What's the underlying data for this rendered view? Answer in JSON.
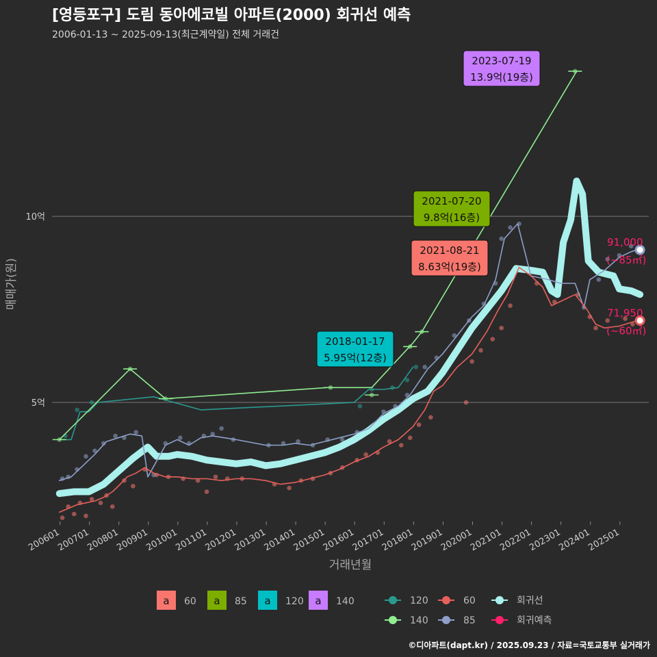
{
  "header": {
    "title": "[영등포구] 도림 동아에코빌 아파트(2000) 회귀선 예측",
    "subtitle": "2006-01-13 ~ 2025-09-13(최근계약일) 전체 거래건"
  },
  "footer": "©디아파트(dapt.kr) / 2025.09.23 / 자료=국토교통부 실거래가",
  "chart_data": {
    "type": "line",
    "xlabel": "거래년월",
    "ylabel": "매매가(원)",
    "x_ticks": [
      "200601",
      "200701",
      "200801",
      "200901",
      "201001",
      "201101",
      "201201",
      "201301",
      "201401",
      "201501",
      "201601",
      "201701",
      "201801",
      "201901",
      "202001",
      "202101",
      "202201",
      "202301",
      "202401",
      "202501"
    ],
    "y_ticks": [
      {
        "value": 5,
        "label": "5억"
      },
      {
        "value": 10,
        "label": "10억"
      }
    ],
    "xlim": [
      2005.75,
      2026.0
    ],
    "ylim": [
      1.8,
      14.6
    ],
    "grid": true,
    "colors": {
      "60": "#f8766d",
      "85": "#7cae00",
      "120": "#00bfc4",
      "140": "#c77cff",
      "line60": "#e8605a",
      "line85": "#8ea0c8",
      "line120": "#2a9a8f",
      "line140": "#90ee90",
      "regression": "#aaf0ec",
      "forecast": "#ff1f6a"
    },
    "series": [
      {
        "name": "60",
        "values": [
          [
            2006.0,
            2.05
          ],
          [
            2006.3,
            2.15
          ],
          [
            2006.6,
            2.25
          ],
          [
            2006.9,
            2.3
          ],
          [
            2007.2,
            2.35
          ],
          [
            2007.5,
            2.45
          ],
          [
            2007.8,
            2.6
          ],
          [
            2008.0,
            2.75
          ],
          [
            2008.3,
            3.0
          ],
          [
            2008.6,
            3.1
          ],
          [
            2008.9,
            3.25
          ],
          [
            2009.2,
            3.1
          ],
          [
            2009.6,
            3.0
          ],
          [
            2010.0,
            3.0
          ],
          [
            2010.5,
            2.95
          ],
          [
            2011.0,
            2.95
          ],
          [
            2011.5,
            2.9
          ],
          [
            2012.0,
            2.95
          ],
          [
            2012.5,
            2.95
          ],
          [
            2013.0,
            2.9
          ],
          [
            2013.5,
            2.8
          ],
          [
            2014.0,
            2.85
          ],
          [
            2014.5,
            2.95
          ],
          [
            2015.0,
            3.05
          ],
          [
            2015.5,
            3.2
          ],
          [
            2016.0,
            3.4
          ],
          [
            2016.5,
            3.55
          ],
          [
            2017.0,
            3.8
          ],
          [
            2017.5,
            4.0
          ],
          [
            2018.0,
            4.35
          ],
          [
            2018.4,
            4.8
          ],
          [
            2018.7,
            5.3
          ],
          [
            2019.0,
            5.45
          ],
          [
            2019.5,
            5.95
          ],
          [
            2020.0,
            6.3
          ],
          [
            2020.5,
            6.9
          ],
          [
            2020.9,
            7.5
          ],
          [
            2021.2,
            7.9
          ],
          [
            2021.6,
            8.63
          ],
          [
            2022.0,
            8.4
          ],
          [
            2022.4,
            8.1
          ],
          [
            2022.7,
            7.6
          ],
          [
            2023.5,
            7.9
          ],
          [
            2023.9,
            7.5
          ],
          [
            2024.2,
            7.1
          ],
          [
            2024.5,
            7.0
          ],
          [
            2025.0,
            7.05
          ],
          [
            2025.4,
            7.15
          ],
          [
            2025.6,
            7.2
          ]
        ]
      },
      {
        "name": "85",
        "values": [
          [
            2006.0,
            2.9
          ],
          [
            2006.4,
            3.0
          ],
          [
            2006.8,
            3.3
          ],
          [
            2007.2,
            3.6
          ],
          [
            2007.6,
            3.95
          ],
          [
            2008.0,
            4.05
          ],
          [
            2008.4,
            4.15
          ],
          [
            2008.8,
            4.1
          ],
          [
            2009.0,
            3.0
          ],
          [
            2009.6,
            3.85
          ],
          [
            2010.0,
            4.0
          ],
          [
            2010.4,
            3.85
          ],
          [
            2010.8,
            4.05
          ],
          [
            2011.2,
            4.1
          ],
          [
            2011.6,
            4.05
          ],
          [
            2012.0,
            4.0
          ],
          [
            2013.0,
            3.85
          ],
          [
            2013.6,
            3.85
          ],
          [
            2014.0,
            3.9
          ],
          [
            2014.5,
            3.85
          ],
          [
            2015.0,
            3.95
          ],
          [
            2015.5,
            4.05
          ],
          [
            2016.0,
            4.15
          ],
          [
            2016.5,
            4.3
          ],
          [
            2017.0,
            4.7
          ],
          [
            2017.5,
            4.9
          ],
          [
            2017.9,
            5.2
          ],
          [
            2018.5,
            5.9
          ],
          [
            2019.0,
            6.3
          ],
          [
            2019.5,
            6.8
          ],
          [
            2020.0,
            7.3
          ],
          [
            2020.4,
            7.6
          ],
          [
            2020.8,
            8.3
          ],
          [
            2021.1,
            9.4
          ],
          [
            2021.55,
            9.8
          ],
          [
            2022.0,
            8.4
          ],
          [
            2022.6,
            8.3
          ],
          [
            2023.0,
            8.2
          ],
          [
            2023.5,
            8.2
          ],
          [
            2023.8,
            7.55
          ],
          [
            2024.0,
            8.3
          ],
          [
            2024.5,
            8.55
          ],
          [
            2025.0,
            8.9
          ],
          [
            2025.4,
            9.05
          ],
          [
            2025.6,
            9.1
          ]
        ]
      },
      {
        "name": "120",
        "values": [
          [
            2006.0,
            4.0
          ],
          [
            2006.4,
            4.0
          ],
          [
            2006.7,
            4.75
          ],
          [
            2007.0,
            4.75
          ],
          [
            2007.3,
            5.0
          ],
          [
            2009.2,
            5.15
          ],
          [
            2010.8,
            4.8
          ],
          [
            2016.0,
            5.0
          ],
          [
            2016.5,
            5.35
          ],
          [
            2017.0,
            5.35
          ],
          [
            2017.5,
            5.4
          ],
          [
            2018.0,
            5.95
          ]
        ]
      },
      {
        "name": "140",
        "values": [
          [
            2006.0,
            4.0
          ],
          [
            2008.4,
            5.9
          ],
          [
            2009.6,
            5.1
          ],
          [
            2015.1,
            5.4
          ],
          [
            2016.6,
            5.4
          ],
          [
            2018.0,
            6.6
          ],
          [
            2018.3,
            6.9
          ],
          [
            2023.55,
            13.9
          ]
        ]
      },
      {
        "name": "회귀선",
        "values": [
          [
            2006.0,
            2.55
          ],
          [
            2006.5,
            2.6
          ],
          [
            2007.0,
            2.6
          ],
          [
            2007.5,
            2.8
          ],
          [
            2008.0,
            3.15
          ],
          [
            2008.5,
            3.5
          ],
          [
            2009.0,
            3.8
          ],
          [
            2009.3,
            3.55
          ],
          [
            2009.7,
            3.55
          ],
          [
            2010.0,
            3.6
          ],
          [
            2010.5,
            3.55
          ],
          [
            2011.0,
            3.45
          ],
          [
            2011.5,
            3.4
          ],
          [
            2012.0,
            3.35
          ],
          [
            2012.5,
            3.4
          ],
          [
            2013.0,
            3.3
          ],
          [
            2013.5,
            3.35
          ],
          [
            2014.0,
            3.45
          ],
          [
            2014.5,
            3.55
          ],
          [
            2015.0,
            3.65
          ],
          [
            2015.5,
            3.8
          ],
          [
            2016.0,
            4.0
          ],
          [
            2016.5,
            4.25
          ],
          [
            2017.0,
            4.55
          ],
          [
            2017.5,
            4.8
          ],
          [
            2018.0,
            5.1
          ],
          [
            2018.5,
            5.3
          ],
          [
            2019.0,
            5.8
          ],
          [
            2019.5,
            6.4
          ],
          [
            2020.0,
            7.0
          ],
          [
            2020.5,
            7.5
          ],
          [
            2021.0,
            8.0
          ],
          [
            2021.5,
            8.6
          ],
          [
            2022.0,
            8.55
          ],
          [
            2022.4,
            8.5
          ],
          [
            2022.7,
            8.0
          ],
          [
            2022.9,
            7.9
          ],
          [
            2023.1,
            9.3
          ],
          [
            2023.35,
            9.9
          ],
          [
            2023.55,
            10.95
          ],
          [
            2023.75,
            10.6
          ],
          [
            2023.95,
            8.8
          ],
          [
            2024.3,
            8.5
          ],
          [
            2024.8,
            8.4
          ],
          [
            2025.0,
            8.05
          ],
          [
            2025.4,
            8.0
          ],
          [
            2025.7,
            7.9
          ]
        ]
      }
    ],
    "points": {
      "60": [
        [
          2006.1,
          1.9
        ],
        [
          2006.3,
          2.2
        ],
        [
          2006.5,
          2.0
        ],
        [
          2006.7,
          2.3
        ],
        [
          2006.9,
          1.95
        ],
        [
          2007.1,
          2.4
        ],
        [
          2007.4,
          2.3
        ],
        [
          2007.6,
          2.5
        ],
        [
          2007.8,
          2.2
        ],
        [
          2008.2,
          2.9
        ],
        [
          2008.5,
          2.75
        ],
        [
          2008.9,
          3.2
        ],
        [
          2009.3,
          3.05
        ],
        [
          2009.7,
          3.0
        ],
        [
          2010.2,
          2.95
        ],
        [
          2010.7,
          2.9
        ],
        [
          2011.0,
          2.6
        ],
        [
          2011.3,
          3.0
        ],
        [
          2011.7,
          2.95
        ],
        [
          2012.2,
          2.95
        ],
        [
          2013.3,
          2.8
        ],
        [
          2013.8,
          2.7
        ],
        [
          2014.2,
          2.9
        ],
        [
          2014.6,
          2.95
        ],
        [
          2015.2,
          3.1
        ],
        [
          2015.6,
          3.25
        ],
        [
          2016.1,
          3.45
        ],
        [
          2016.4,
          3.6
        ],
        [
          2016.8,
          3.65
        ],
        [
          2017.2,
          3.95
        ],
        [
          2017.6,
          3.85
        ],
        [
          2017.9,
          4.05
        ],
        [
          2018.2,
          4.4
        ],
        [
          2018.6,
          4.6
        ],
        [
          2019.8,
          5.0
        ],
        [
          2020.0,
          6.1
        ],
        [
          2020.3,
          6.4
        ],
        [
          2020.7,
          6.7
        ],
        [
          2021.0,
          7.0
        ],
        [
          2021.3,
          7.6
        ],
        [
          2022.2,
          8.2
        ],
        [
          2022.5,
          8.35
        ],
        [
          2022.8,
          7.7
        ],
        [
          2023.6,
          7.9
        ],
        [
          2024.0,
          7.3
        ],
        [
          2024.2,
          7.0
        ],
        [
          2024.6,
          7.2
        ],
        [
          2025.2,
          7.25
        ],
        [
          2025.45,
          7.1
        ]
      ],
      "85": [
        [
          2006.1,
          2.95
        ],
        [
          2006.3,
          3.0
        ],
        [
          2006.6,
          3.2
        ],
        [
          2006.9,
          3.55
        ],
        [
          2007.2,
          3.7
        ],
        [
          2007.5,
          3.9
        ],
        [
          2007.9,
          4.1
        ],
        [
          2008.2,
          4.05
        ],
        [
          2008.6,
          4.2
        ],
        [
          2009.2,
          3.05
        ],
        [
          2009.6,
          3.9
        ],
        [
          2010.1,
          4.05
        ],
        [
          2010.4,
          3.9
        ],
        [
          2010.9,
          4.1
        ],
        [
          2011.2,
          4.15
        ],
        [
          2011.5,
          4.3
        ],
        [
          2011.9,
          4.0
        ],
        [
          2013.1,
          3.85
        ],
        [
          2013.6,
          3.9
        ],
        [
          2014.1,
          3.95
        ],
        [
          2014.6,
          3.85
        ],
        [
          2015.1,
          4.0
        ],
        [
          2015.6,
          4.0
        ],
        [
          2016.1,
          4.2
        ],
        [
          2016.6,
          4.35
        ],
        [
          2017.0,
          4.75
        ],
        [
          2017.4,
          4.9
        ],
        [
          2017.8,
          5.2
        ],
        [
          2018.4,
          5.95
        ],
        [
          2018.8,
          6.2
        ],
        [
          2019.4,
          6.8
        ],
        [
          2019.9,
          7.2
        ],
        [
          2020.4,
          7.65
        ],
        [
          2020.8,
          8.2
        ],
        [
          2021.0,
          9.4
        ],
        [
          2021.3,
          9.7
        ],
        [
          2021.6,
          9.8
        ],
        [
          2023.8,
          7.55
        ],
        [
          2024.3,
          8.3
        ],
        [
          2024.6,
          8.85
        ],
        [
          2025.0,
          8.95
        ],
        [
          2025.4,
          9.2
        ]
      ],
      "120": [
        [
          2006.2,
          4.1
        ],
        [
          2006.6,
          4.8
        ],
        [
          2007.1,
          5.0
        ],
        [
          2016.2,
          4.9
        ],
        [
          2016.6,
          5.35
        ],
        [
          2017.3,
          5.4
        ],
        [
          2017.8,
          5.6
        ],
        [
          2018.1,
          5.95
        ]
      ],
      "140": [
        [
          2006.0,
          4.0
        ],
        [
          2008.4,
          5.9
        ],
        [
          2009.6,
          5.1
        ],
        [
          2015.2,
          5.4
        ],
        [
          2016.6,
          5.2
        ],
        [
          2017.9,
          6.5
        ],
        [
          2018.3,
          6.9
        ],
        [
          2023.5,
          13.9
        ]
      ]
    },
    "callouts": [
      {
        "date": "2023-07-19",
        "price": "13.9억(19층)",
        "group": "140"
      },
      {
        "date": "2021-07-20",
        "price": "9.8억(16층)",
        "group": "85"
      },
      {
        "date": "2021-08-21",
        "price": "8.63억(19층)",
        "group": "60"
      },
      {
        "date": "2018-01-17",
        "price": "5.95억(12층)",
        "group": "120"
      }
    ],
    "forecasts": [
      {
        "value": "91,000",
        "area": "(~85㎡)",
        "x": 2025.7,
        "y": 9.1,
        "group": "85"
      },
      {
        "value": "71,950",
        "area": "(~60㎡)",
        "x": 2025.7,
        "y": 7.2,
        "group": "60"
      }
    ],
    "legend_left": [
      {
        "glyph": "a",
        "label": "60",
        "color": "#f8766d"
      },
      {
        "glyph": "a",
        "label": "85",
        "color": "#7cae00"
      },
      {
        "glyph": "a",
        "label": "120",
        "color": "#00bfc4"
      },
      {
        "glyph": "a",
        "label": "140",
        "color": "#c77cff"
      }
    ],
    "legend_right": [
      {
        "label": "120",
        "color": "#2a9a8f"
      },
      {
        "label": "60",
        "color": "#e8605a"
      },
      {
        "label": "회귀선",
        "color": "#aaf0ec"
      },
      {
        "label": "140",
        "color": "#90ee90"
      },
      {
        "label": "85",
        "color": "#8ea0c8"
      },
      {
        "label": "회귀예측",
        "color": "#ff1f6a"
      }
    ]
  }
}
